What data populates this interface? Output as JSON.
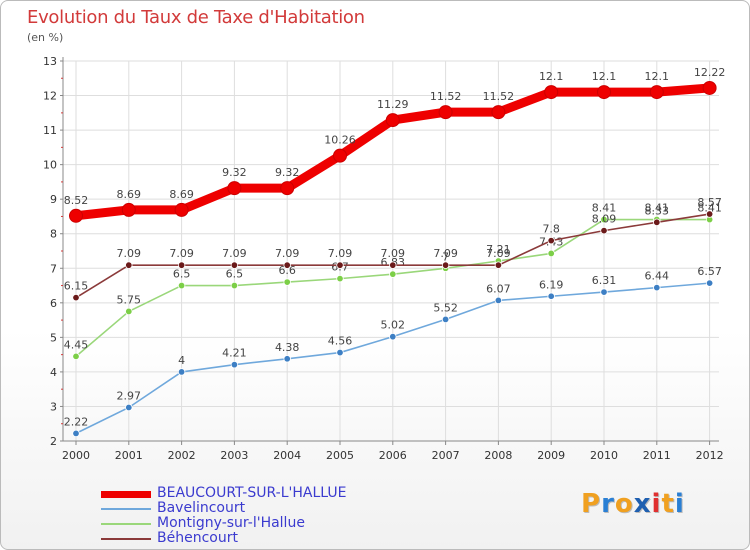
{
  "header": {
    "title": "Evolution du Taux de Taxe d'Habitation",
    "subtitle": "(en %)"
  },
  "logo": {
    "letters": [
      "P",
      "r",
      "o",
      "x",
      "i",
      "t",
      "i"
    ],
    "colors": [
      "#f0a020",
      "#2a7fd4",
      "#f0a020",
      "#1e5fb0",
      "#e03030",
      "#f0a020",
      "#2a7fd4"
    ]
  },
  "chart_data": {
    "type": "line",
    "title": "Evolution du Taux de Taxe d'Habitation",
    "ylabel": "(en %)",
    "x": [
      "2000",
      "2001",
      "2002",
      "2003",
      "2004",
      "2005",
      "2006",
      "2007",
      "2008",
      "2009",
      "2010",
      "2011",
      "2012"
    ],
    "ylim": [
      2,
      13
    ],
    "yticks": [
      "2",
      "3",
      "4",
      "5",
      "6",
      "7",
      "8",
      "9",
      "10",
      "11",
      "12",
      "13"
    ],
    "grid": true,
    "legend_position": "bottom-left",
    "series": [
      {
        "name": "BEAUCOURT-SUR-L'HALLUE",
        "color": "#ee0000",
        "marker": "#ee0000",
        "weight": "thick",
        "values": [
          8.52,
          8.69,
          8.69,
          9.32,
          9.32,
          10.26,
          11.29,
          11.52,
          11.52,
          12.1,
          12.1,
          12.1,
          12.22
        ],
        "labels": [
          "8.52",
          "8.69",
          "8.69",
          "9.32",
          "9.32",
          "10.26",
          "11.29",
          "11.52",
          "11.52",
          "12.1",
          "12.1",
          "12.1",
          "12.22"
        ]
      },
      {
        "name": "Bavelincourt",
        "color": "#6fa8dc",
        "marker": "#3d7fc4",
        "weight": "thin",
        "values": [
          2.22,
          2.97,
          4,
          4.21,
          4.38,
          4.56,
          5.02,
          5.52,
          6.07,
          6.19,
          6.31,
          6.44,
          6.57
        ],
        "labels": [
          "2.22",
          "2.97",
          "4",
          "4.21",
          "4.38",
          "4.56",
          "5.02",
          "5.52",
          "6.07",
          "6.19",
          "6.31",
          "6.44",
          "6.57"
        ]
      },
      {
        "name": "Montigny-sur-l'Hallue",
        "color": "#9ad77a",
        "marker": "#7ccf47",
        "weight": "thin",
        "values": [
          4.45,
          5.75,
          6.5,
          6.5,
          6.6,
          6.7,
          6.83,
          7,
          7.21,
          7.43,
          8.41,
          8.41,
          8.41
        ],
        "labels": [
          "4.45",
          "5.75",
          "6.5",
          "6.5",
          "6.6",
          "6.7",
          "6.83",
          "7",
          "7.21",
          "7.43",
          "8.41",
          "8.41",
          "8.41"
        ]
      },
      {
        "name": "Béhencourt",
        "color": "#8b3a3a",
        "marker": "#6b1a1a",
        "weight": "thin",
        "values": [
          6.15,
          7.09,
          7.09,
          7.09,
          7.09,
          7.09,
          7.09,
          7.09,
          7.09,
          7.8,
          8.09,
          8.33,
          8.57
        ],
        "labels": [
          "6.15",
          "7.09",
          "7.09",
          "7.09",
          "7.09",
          "7.09",
          "7.09",
          "7.09",
          "7.09",
          "7.8",
          "8.09",
          "8.33",
          "8.57"
        ]
      }
    ]
  }
}
